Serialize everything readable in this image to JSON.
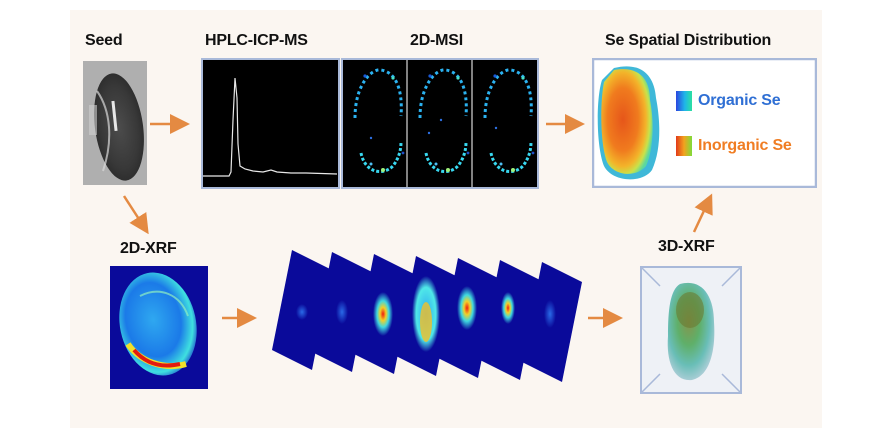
{
  "labels": {
    "seed": "Seed",
    "hplc": "HPLC-ICP-MS",
    "msi": "2D-MSI",
    "se_dist": "Se Spatial Distribution",
    "xrf2d": "2D-XRF",
    "xrf3d": "3D-XRF"
  },
  "legend": {
    "organic": "Organic Se",
    "inorganic": "Inorganic Se"
  },
  "colors": {
    "arrow": "#e48a42",
    "frame": "#a9b9d9",
    "background": "#fbf6f1",
    "organic_text": "#2f6fd4",
    "inorganic_text": "#f07d23"
  }
}
